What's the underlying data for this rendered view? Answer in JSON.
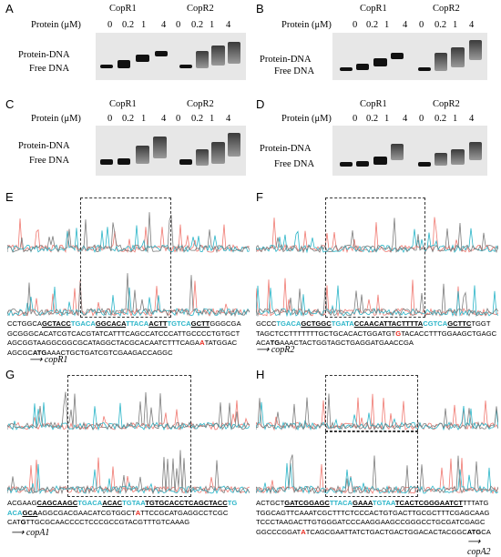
{
  "emsa_panels": [
    {
      "letter": "A",
      "protein_label": "Protein (μM)",
      "groups": [
        "CopR1",
        "CopR2"
      ],
      "concs": [
        "0",
        "0.2",
        "1",
        "4"
      ],
      "band_labels": [
        "Protein-DNA",
        "Free DNA"
      ]
    },
    {
      "letter": "B",
      "protein_label": "Protein (μM)",
      "groups": [
        "CopR1",
        "CopR2"
      ],
      "concs": [
        "0",
        "0.2",
        "1",
        "4"
      ],
      "band_labels": [
        "Protein-DNA",
        "Free DNA"
      ]
    },
    {
      "letter": "C",
      "protein_label": "Protein (μM)",
      "groups": [
        "CopR1",
        "CopR2"
      ],
      "concs": [
        "0",
        "0.2",
        "1",
        "4"
      ],
      "band_labels": [
        "Protein-DNA",
        "Free DNA"
      ]
    },
    {
      "letter": "D",
      "protein_label": "Protein (μM)",
      "groups": [
        "CopR1",
        "CopR2"
      ],
      "concs": [
        "0",
        "0.2",
        "1",
        "4"
      ],
      "band_labels": [
        "Protein-DNA",
        "Free DNA"
      ]
    }
  ],
  "footprint_panels": [
    {
      "letter": "E",
      "gene": "copR1"
    },
    {
      "letter": "F",
      "gene": "copR2"
    },
    {
      "letter": "G",
      "gene": "copA1"
    },
    {
      "letter": "H",
      "gene": "copA2"
    }
  ],
  "colors": {
    "trace_gray": "#7d7d7d",
    "trace_cyan": "#2bb5c8",
    "trace_red": "#f07a72",
    "highlight": "#2bb5c8",
    "mutation": "#e8281d"
  }
}
